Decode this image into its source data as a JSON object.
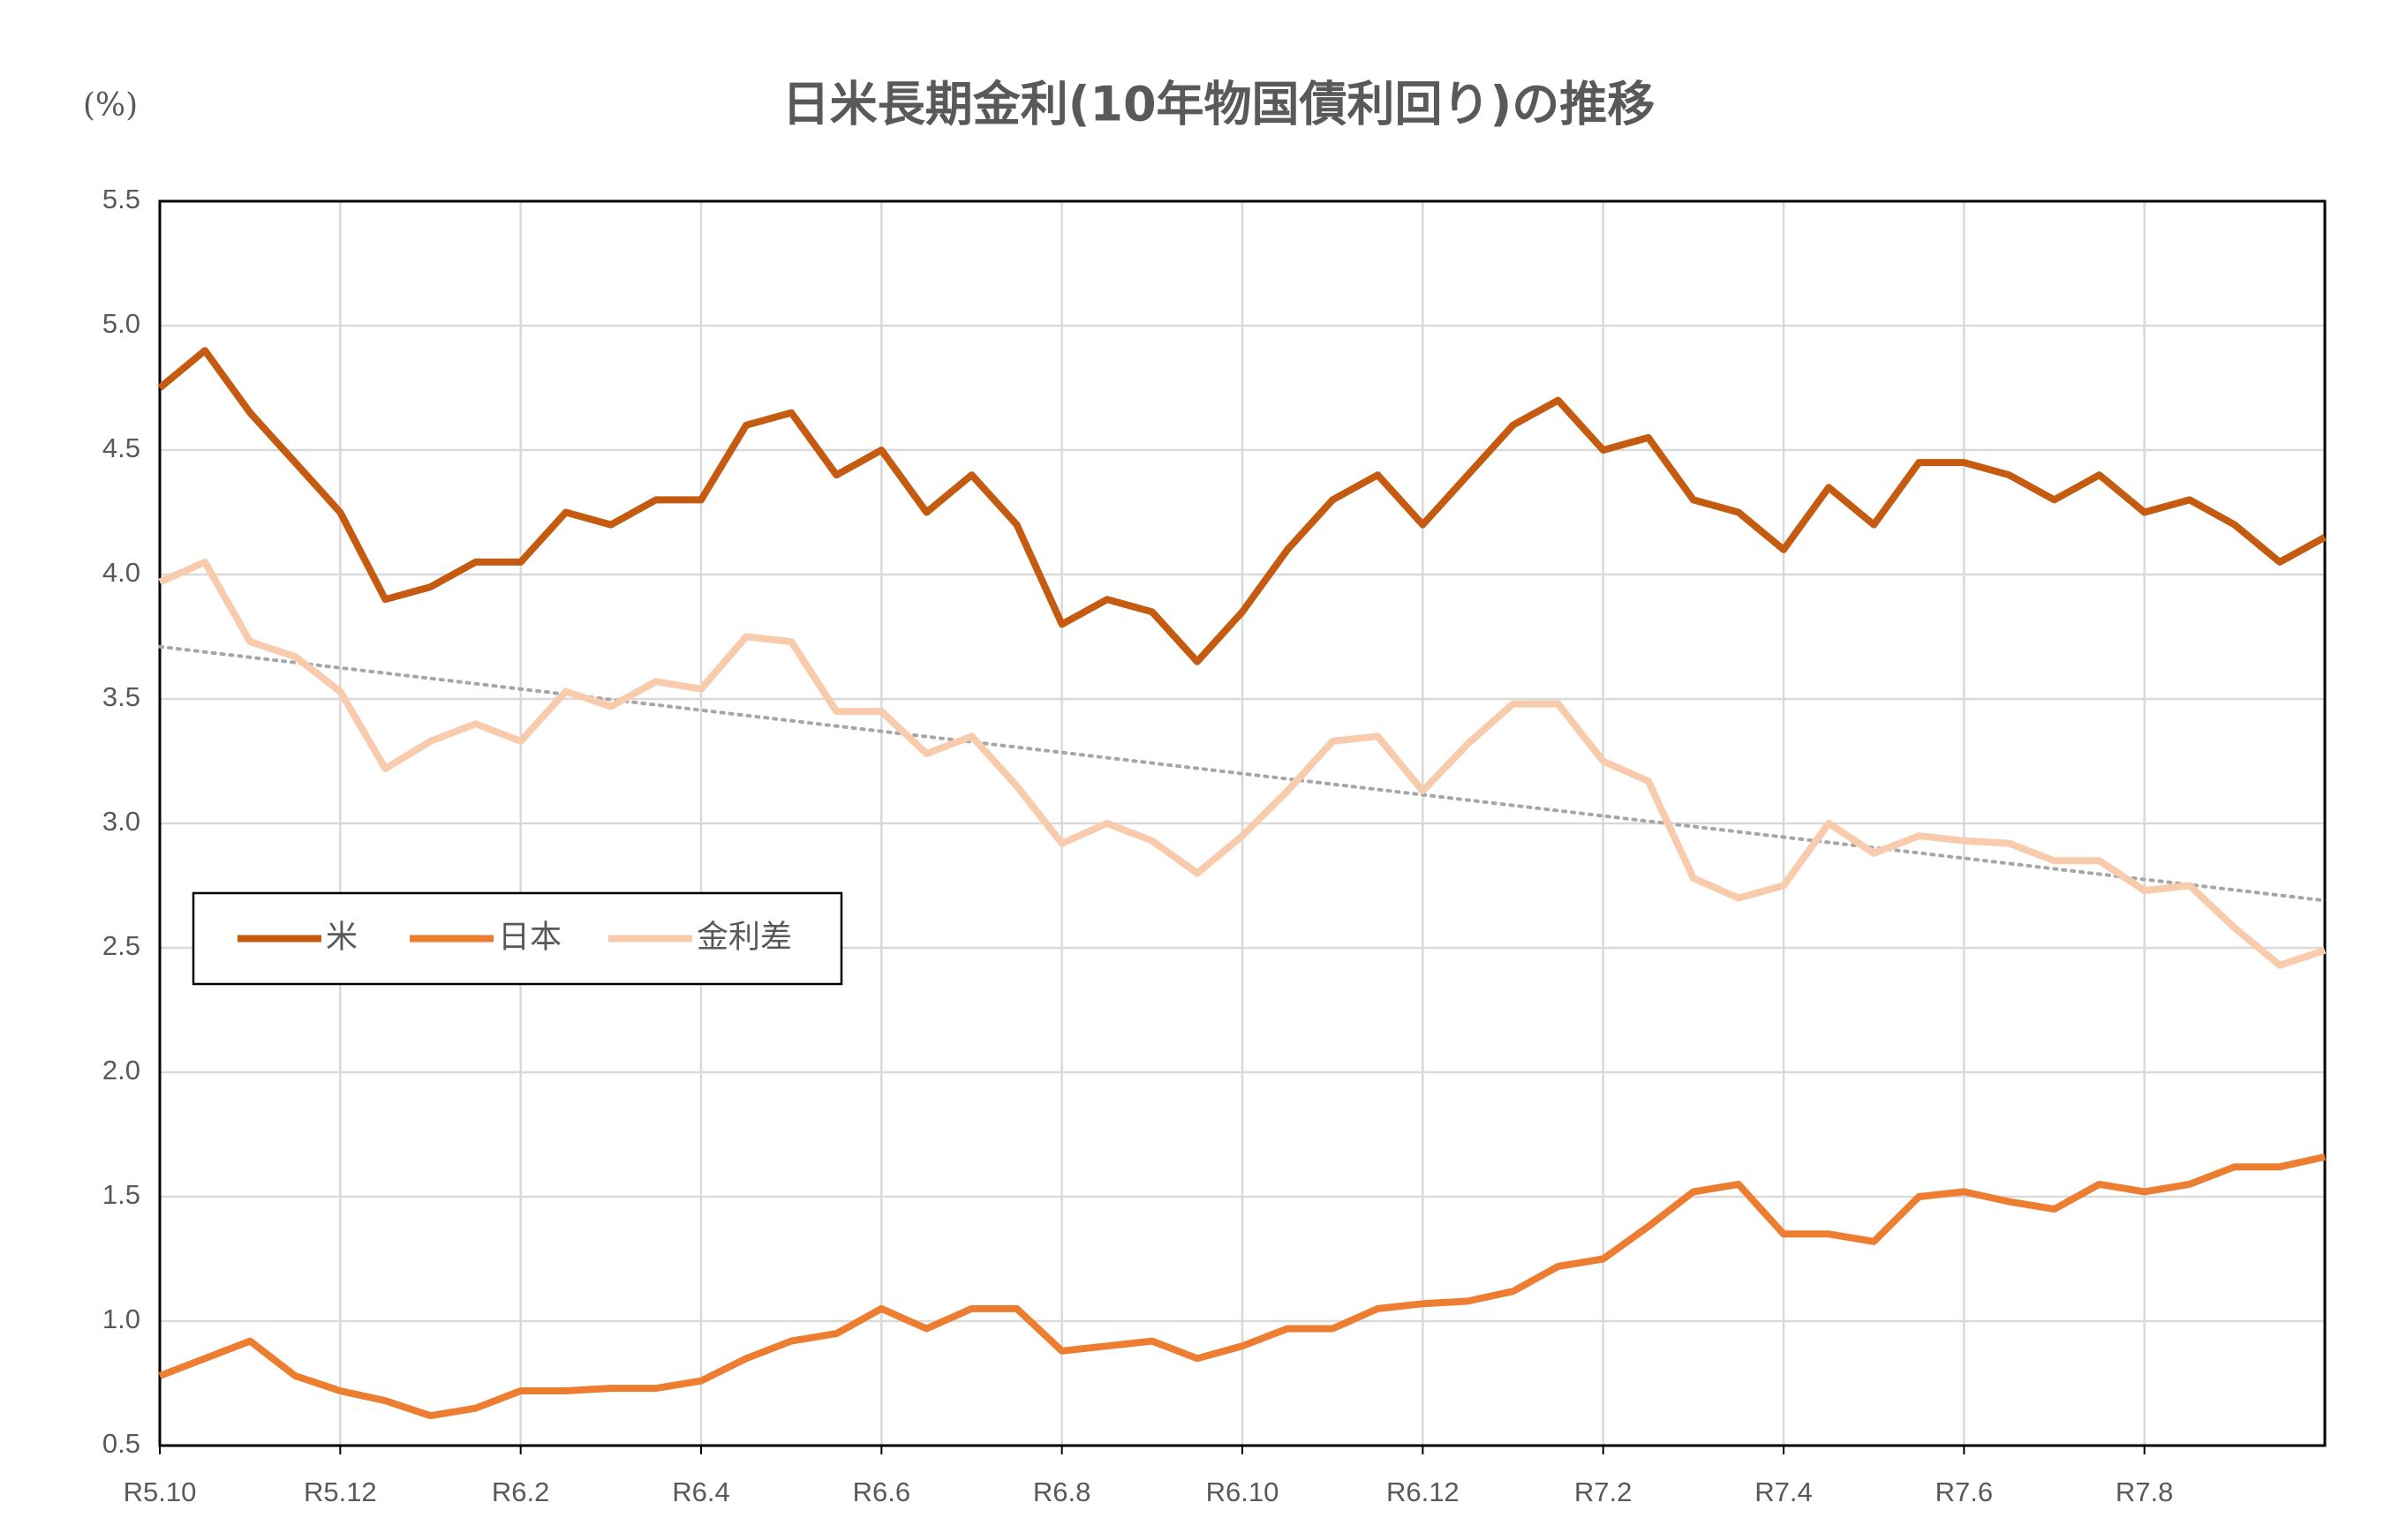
{
  "chart_data": {
    "type": "line",
    "title": "日米長期金利(10年物国債利回り)の推移",
    "y_unit": "(%)",
    "categories": [
      "R5.10",
      null,
      null,
      null,
      "R5.12",
      null,
      null,
      null,
      "R6.2",
      null,
      null,
      null,
      "R6.4",
      null,
      null,
      null,
      "R6.6",
      null,
      null,
      null,
      "R6.8",
      null,
      null,
      null,
      "R6.10",
      null,
      null,
      null,
      "R6.12",
      null,
      null,
      null,
      "R7.2",
      null,
      null,
      null,
      "R7.4",
      null,
      null,
      null,
      "R7.6",
      null,
      null,
      null,
      "R7.8",
      null,
      null,
      null,
      null
    ],
    "series": [
      {
        "name": "米",
        "color": "#c55a11",
        "values": [
          4.75,
          4.9,
          4.65,
          4.45,
          4.25,
          3.9,
          3.95,
          4.05,
          4.05,
          4.25,
          4.2,
          4.3,
          4.3,
          4.6,
          4.65,
          4.4,
          4.5,
          4.25,
          4.4,
          4.2,
          3.8,
          3.9,
          3.85,
          3.65,
          3.85,
          4.1,
          4.3,
          4.4,
          4.2,
          4.4,
          4.6,
          4.7,
          4.5,
          4.55,
          4.3,
          4.25,
          4.1,
          4.35,
          4.2,
          4.45,
          4.45,
          4.4,
          4.3,
          4.4,
          4.25,
          4.3,
          4.2,
          4.05,
          4.15
        ]
      },
      {
        "name": "日本",
        "color": "#ed7d31",
        "values": [
          0.78,
          0.85,
          0.92,
          0.78,
          0.72,
          0.68,
          0.62,
          0.65,
          0.72,
          0.72,
          0.73,
          0.73,
          0.76,
          0.85,
          0.92,
          0.95,
          1.05,
          0.97,
          1.05,
          1.05,
          0.88,
          0.9,
          0.92,
          0.85,
          0.9,
          0.97,
          0.97,
          1.05,
          1.07,
          1.08,
          1.12,
          1.22,
          1.25,
          1.38,
          1.52,
          1.55,
          1.35,
          1.35,
          1.32,
          1.5,
          1.52,
          1.48,
          1.45,
          1.55,
          1.52,
          1.55,
          1.62,
          1.62,
          1.66
        ]
      },
      {
        "name": "金利差",
        "color": "#f8cbad",
        "values": [
          3.97,
          4.05,
          3.73,
          3.67,
          3.53,
          3.22,
          3.33,
          3.4,
          3.33,
          3.53,
          3.47,
          3.57,
          3.54,
          3.75,
          3.73,
          3.45,
          3.45,
          3.28,
          3.35,
          3.15,
          2.92,
          3.0,
          2.93,
          2.8,
          2.95,
          3.13,
          3.33,
          3.35,
          3.13,
          3.32,
          3.48,
          3.48,
          3.25,
          3.17,
          2.78,
          2.7,
          2.75,
          3.0,
          2.88,
          2.95,
          2.93,
          2.92,
          2.85,
          2.85,
          2.73,
          2.75,
          2.58,
          2.43,
          2.49
        ]
      }
    ],
    "trendline": {
      "color": "#a6a6a6",
      "values": [
        3.71,
        2.69
      ]
    },
    "ylim": [
      0.5,
      5.5
    ],
    "yticks": [
      {
        "value": 0.5,
        "label": "0.5"
      },
      {
        "value": 1,
        "label": "1.0"
      },
      {
        "value": 1.5,
        "label": "1.5"
      },
      {
        "value": 2,
        "label": "2.0"
      },
      {
        "value": 2.5,
        "label": "2.5"
      },
      {
        "value": 3,
        "label": "3.0"
      },
      {
        "value": 3.5,
        "label": "3.5"
      },
      {
        "value": 4,
        "label": "4.0"
      },
      {
        "value": 4.5,
        "label": "4.5"
      },
      {
        "value": 5,
        "label": "5.0"
      },
      {
        "value": 5.5,
        "label": "5.5"
      }
    ],
    "grid": true,
    "legend": "left"
  }
}
